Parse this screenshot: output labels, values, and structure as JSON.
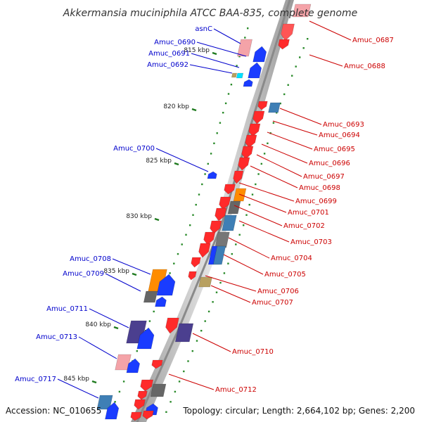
{
  "title": "Akkermansia muciniphila ATCC BAA-835, complete genome",
  "footer": {
    "accession": "Accession: NC_010655",
    "summary": "Topology: circular; Length: 2,664,102 bp; Genes: 2,200"
  },
  "colors": {
    "backbone": "#8a8a8a",
    "tick": "#1f7a1f",
    "left_label": "#0000cc",
    "right_label": "#cc0000"
  },
  "ticks": [
    "815 kbp",
    "820 kbp",
    "825 kbp",
    "830 kbp",
    "835 kbp",
    "840 kbp",
    "845 kbp"
  ],
  "left_labels": [
    "asnC",
    "Amuc_0690",
    "Amuc_0691",
    "Amuc_0692",
    "Amuc_0700",
    "Amuc_0708",
    "Amuc_0709",
    "Amuc_0711",
    "Amuc_0713",
    "Amuc_0717"
  ],
  "right_labels": [
    "Amuc_0687",
    "Amuc_0688",
    "Amuc_0693",
    "Amuc_0694",
    "Amuc_0695",
    "Amuc_0696",
    "Amuc_0697",
    "Amuc_0698",
    "Amuc_0699",
    "Amuc_0701",
    "Amuc_0702",
    "Amuc_0703",
    "Amuc_0704",
    "Amuc_0705",
    "Amuc_0706",
    "Amuc_0707",
    "Amuc_0710",
    "Amuc_0712"
  ]
}
